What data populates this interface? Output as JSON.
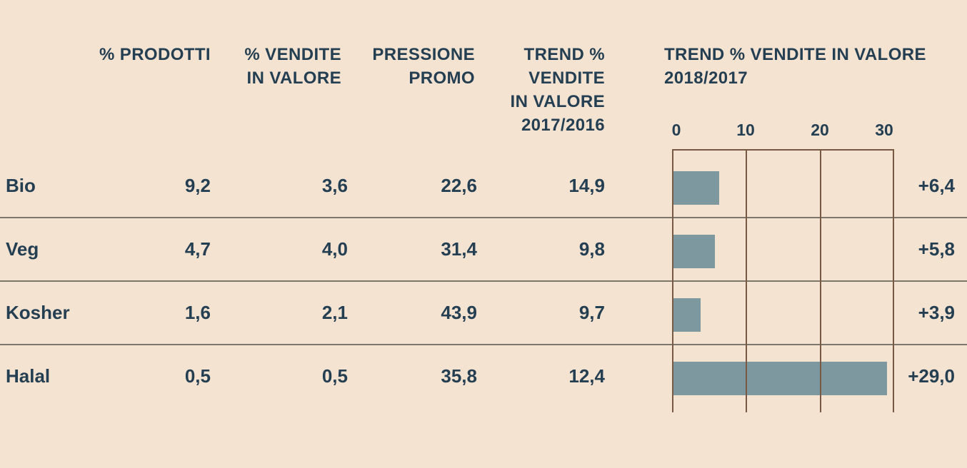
{
  "header": {
    "col_prodotti": "% PRODOTTI",
    "col_vendite": "% VENDITE\nIN VALORE",
    "col_pressione": "PRESSIONE\nPROMO",
    "col_trend_2017_2016": "TREND %\nVENDITE\nIN VALORE\n2017/2016",
    "chart_title": "TREND % VENDITE IN VALORE\n2018/2017"
  },
  "axis": {
    "ticks": [
      "0",
      "10",
      "20",
      "30"
    ],
    "max": 30
  },
  "rows": [
    {
      "label": "Bio",
      "prodotti": "9,2",
      "vendite": "3,6",
      "pressione": "22,6",
      "trend_2017_2016": "14,9",
      "trend_2018_2017_label": "+6,4",
      "trend_2018_2017_value": 6.4
    },
    {
      "label": "Veg",
      "prodotti": "4,7",
      "vendite": "4,0",
      "pressione": "31,4",
      "trend_2017_2016": "9,8",
      "trend_2018_2017_label": "+5,8",
      "trend_2018_2017_value": 5.8
    },
    {
      "label": "Kosher",
      "prodotti": "1,6",
      "vendite": "2,1",
      "pressione": "43,9",
      "trend_2017_2016": "9,7",
      "trend_2018_2017_label": "+3,9",
      "trend_2018_2017_value": 3.9
    },
    {
      "label": "Halal",
      "prodotti": "0,5",
      "vendite": "0,5",
      "pressione": "35,8",
      "trend_2017_2016": "12,4",
      "trend_2018_2017_label": "+29,0",
      "trend_2018_2017_value": 29.0
    }
  ],
  "colors": {
    "background": "#f5e3d2",
    "text": "#253f52",
    "bar": "#7e989f",
    "grid": "#785a44",
    "separator": "#7d766b"
  },
  "chart_data": {
    "type": "bar",
    "orientation": "horizontal",
    "categories": [
      "Bio",
      "Veg",
      "Kosher",
      "Halal"
    ],
    "series": [
      {
        "name": "% PRODOTTI",
        "values": [
          9.2,
          4.7,
          1.6,
          0.5
        ]
      },
      {
        "name": "% VENDITE IN VALORE",
        "values": [
          3.6,
          4.0,
          2.1,
          0.5
        ]
      },
      {
        "name": "PRESSIONE PROMO",
        "values": [
          22.6,
          31.4,
          43.9,
          35.8
        ]
      },
      {
        "name": "TREND % VENDITE IN VALORE 2017/2016",
        "values": [
          14.9,
          9.8,
          9.7,
          12.4
        ]
      },
      {
        "name": "TREND % VENDITE IN VALORE 2018/2017",
        "values": [
          6.4,
          5.8,
          3.9,
          29.0
        ]
      }
    ],
    "bar_series": "TREND % VENDITE IN VALORE 2018/2017",
    "bar_labels": [
      "+6,4",
      "+5,8",
      "+3,9",
      "+29,0"
    ],
    "title": "TREND % VENDITE IN VALORE 2018/2017",
    "xlabel": "",
    "ylabel": "",
    "xlim": [
      0,
      30
    ],
    "xticks": [
      0,
      10,
      20,
      30
    ],
    "grid": true,
    "legend": false
  }
}
